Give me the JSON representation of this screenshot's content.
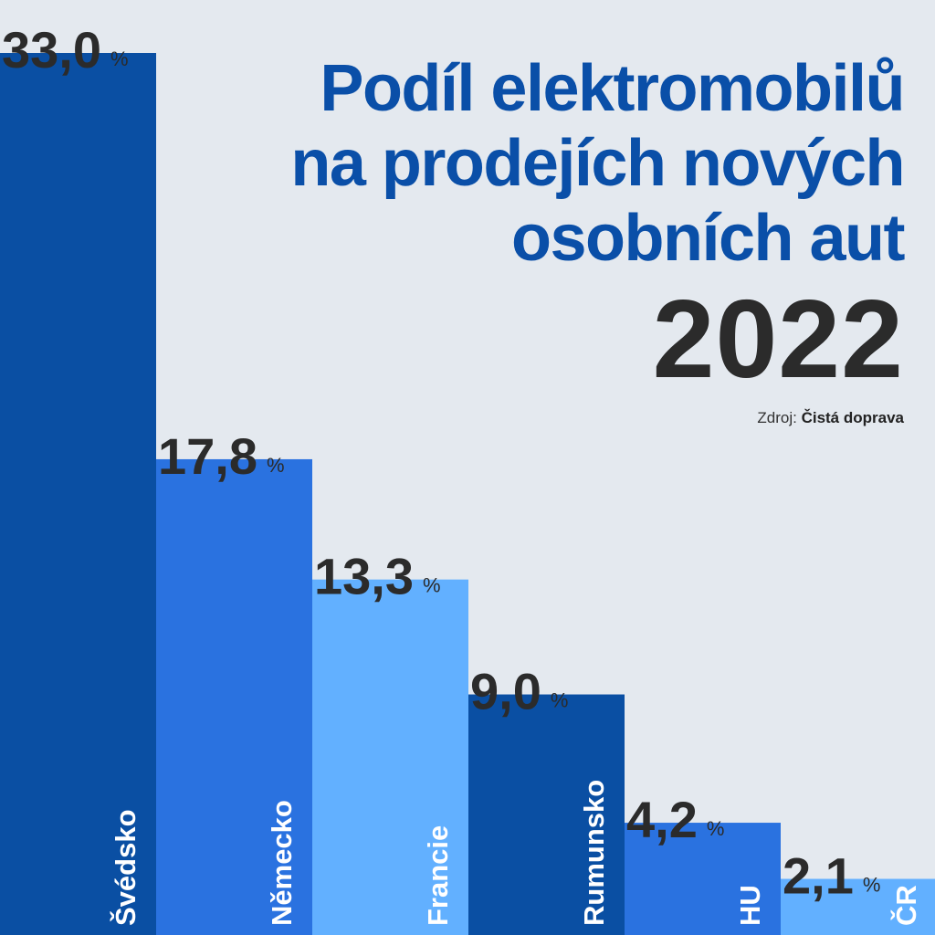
{
  "chart_data": {
    "type": "bar",
    "title_lines": [
      "Podíl elektromobilů",
      "na prodejích nových",
      "osobních aut"
    ],
    "year": "2022",
    "source_label": "Zdroj:",
    "source_name": "Čistá doprava",
    "unit": "%",
    "categories": [
      "Švédsko",
      "Německo",
      "Francie",
      "Rumunsko",
      "HU",
      "ČR"
    ],
    "value_labels": [
      "33,0",
      "17,8",
      "13,3",
      "9,0",
      "4,2",
      "2,1"
    ],
    "values": [
      33.0,
      17.8,
      13.3,
      9.0,
      4.2,
      2.1
    ],
    "colors": [
      "#0a4fa3",
      "#2a72e0",
      "#62b0ff",
      "#0a4fa3",
      "#2a72e0",
      "#62b0ff"
    ],
    "label_color": "#2b2b2b",
    "category_label_color": "#ffffff"
  }
}
